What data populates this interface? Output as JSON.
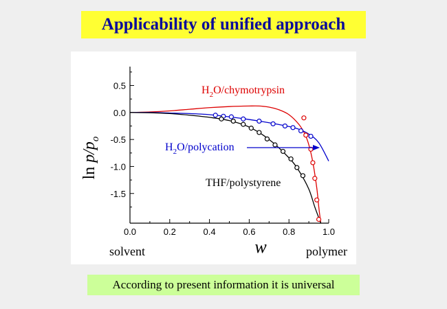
{
  "slide": {
    "title": "Applicability of unified approach",
    "footer": "According to present information it is universal"
  },
  "chart_data": {
    "type": "line",
    "xlim": [
      0,
      1
    ],
    "ylim": [
      -2.05,
      0.85
    ],
    "x_ticks": [
      0.0,
      0.2,
      0.4,
      0.6,
      0.8,
      1.0
    ],
    "x_tick_labels": [
      "0.0",
      "0.2",
      "0.4",
      "0.6",
      "0.8",
      "1.0"
    ],
    "y_ticks": [
      0.5,
      0.0,
      -0.5,
      -1.0,
      -1.5
    ],
    "y_tick_labels": [
      "0.5",
      "0.0",
      "-0.5",
      "-1.0",
      "-1.5"
    ],
    "xlabel": "w",
    "ylabel_main": "ln",
    "ylabel_var": "p/p",
    "ylabel_sub": "o",
    "x_left_note": "solvent",
    "x_right_note": "polymer",
    "grid": false,
    "series": [
      {
        "name_main": "H",
        "name_sub": "2",
        "name_rest": "O/chymotrypsin",
        "color": "#dd0000",
        "points": [
          [
            0.875,
            -0.1
          ],
          [
            0.885,
            -0.42
          ],
          [
            0.91,
            -0.68
          ],
          [
            0.92,
            -0.93
          ],
          [
            0.93,
            -1.22
          ],
          [
            0.94,
            -1.62
          ],
          [
            0.95,
            -1.98
          ]
        ],
        "curve": [
          [
            0.0,
            0.0
          ],
          [
            0.1,
            0.01
          ],
          [
            0.2,
            0.03
          ],
          [
            0.3,
            0.06
          ],
          [
            0.4,
            0.09
          ],
          [
            0.5,
            0.11
          ],
          [
            0.6,
            0.12
          ],
          [
            0.65,
            0.12
          ],
          [
            0.7,
            0.1
          ],
          [
            0.75,
            0.05
          ],
          [
            0.8,
            -0.04
          ],
          [
            0.85,
            -0.22
          ],
          [
            0.88,
            -0.4
          ],
          [
            0.9,
            -0.6
          ],
          [
            0.92,
            -0.92
          ],
          [
            0.94,
            -1.4
          ],
          [
            0.95,
            -1.75
          ],
          [
            0.96,
            -2.05
          ]
        ]
      },
      {
        "name_main": "H",
        "name_sub": "2",
        "name_rest": "O/polycation",
        "color": "#0000cc",
        "points": [
          [
            0.43,
            -0.05
          ],
          [
            0.47,
            -0.07
          ],
          [
            0.51,
            -0.08
          ],
          [
            0.57,
            -0.12
          ],
          [
            0.65,
            -0.16
          ],
          [
            0.72,
            -0.21
          ],
          [
            0.78,
            -0.25
          ],
          [
            0.82,
            -0.28
          ],
          [
            0.86,
            -0.34
          ],
          [
            0.91,
            -0.44
          ]
        ],
        "curve": [
          [
            0.0,
            0.0
          ],
          [
            0.1,
            0.0
          ],
          [
            0.2,
            -0.01
          ],
          [
            0.3,
            -0.02
          ],
          [
            0.4,
            -0.04
          ],
          [
            0.5,
            -0.08
          ],
          [
            0.6,
            -0.13
          ],
          [
            0.7,
            -0.19
          ],
          [
            0.8,
            -0.26
          ],
          [
            0.85,
            -0.31
          ],
          [
            0.9,
            -0.4
          ],
          [
            0.95,
            -0.56
          ],
          [
            1.0,
            -0.9
          ]
        ]
      },
      {
        "name": "THF/polystyrene",
        "color": "#000000",
        "points": [
          [
            0.46,
            -0.12
          ],
          [
            0.52,
            -0.16
          ],
          [
            0.57,
            -0.22
          ],
          [
            0.61,
            -0.29
          ],
          [
            0.65,
            -0.37
          ],
          [
            0.69,
            -0.49
          ],
          [
            0.73,
            -0.6
          ],
          [
            0.77,
            -0.72
          ],
          [
            0.81,
            -0.86
          ],
          [
            0.84,
            -1.02
          ],
          [
            0.87,
            -1.17
          ]
        ],
        "curve": [
          [
            0.0,
            0.0
          ],
          [
            0.1,
            -0.005
          ],
          [
            0.2,
            -0.02
          ],
          [
            0.3,
            -0.05
          ],
          [
            0.4,
            -0.09
          ],
          [
            0.5,
            -0.15
          ],
          [
            0.6,
            -0.27
          ],
          [
            0.7,
            -0.5
          ],
          [
            0.8,
            -0.84
          ],
          [
            0.85,
            -1.08
          ],
          [
            0.9,
            -1.42
          ],
          [
            0.93,
            -1.75
          ],
          [
            0.96,
            -2.05
          ]
        ]
      }
    ]
  }
}
